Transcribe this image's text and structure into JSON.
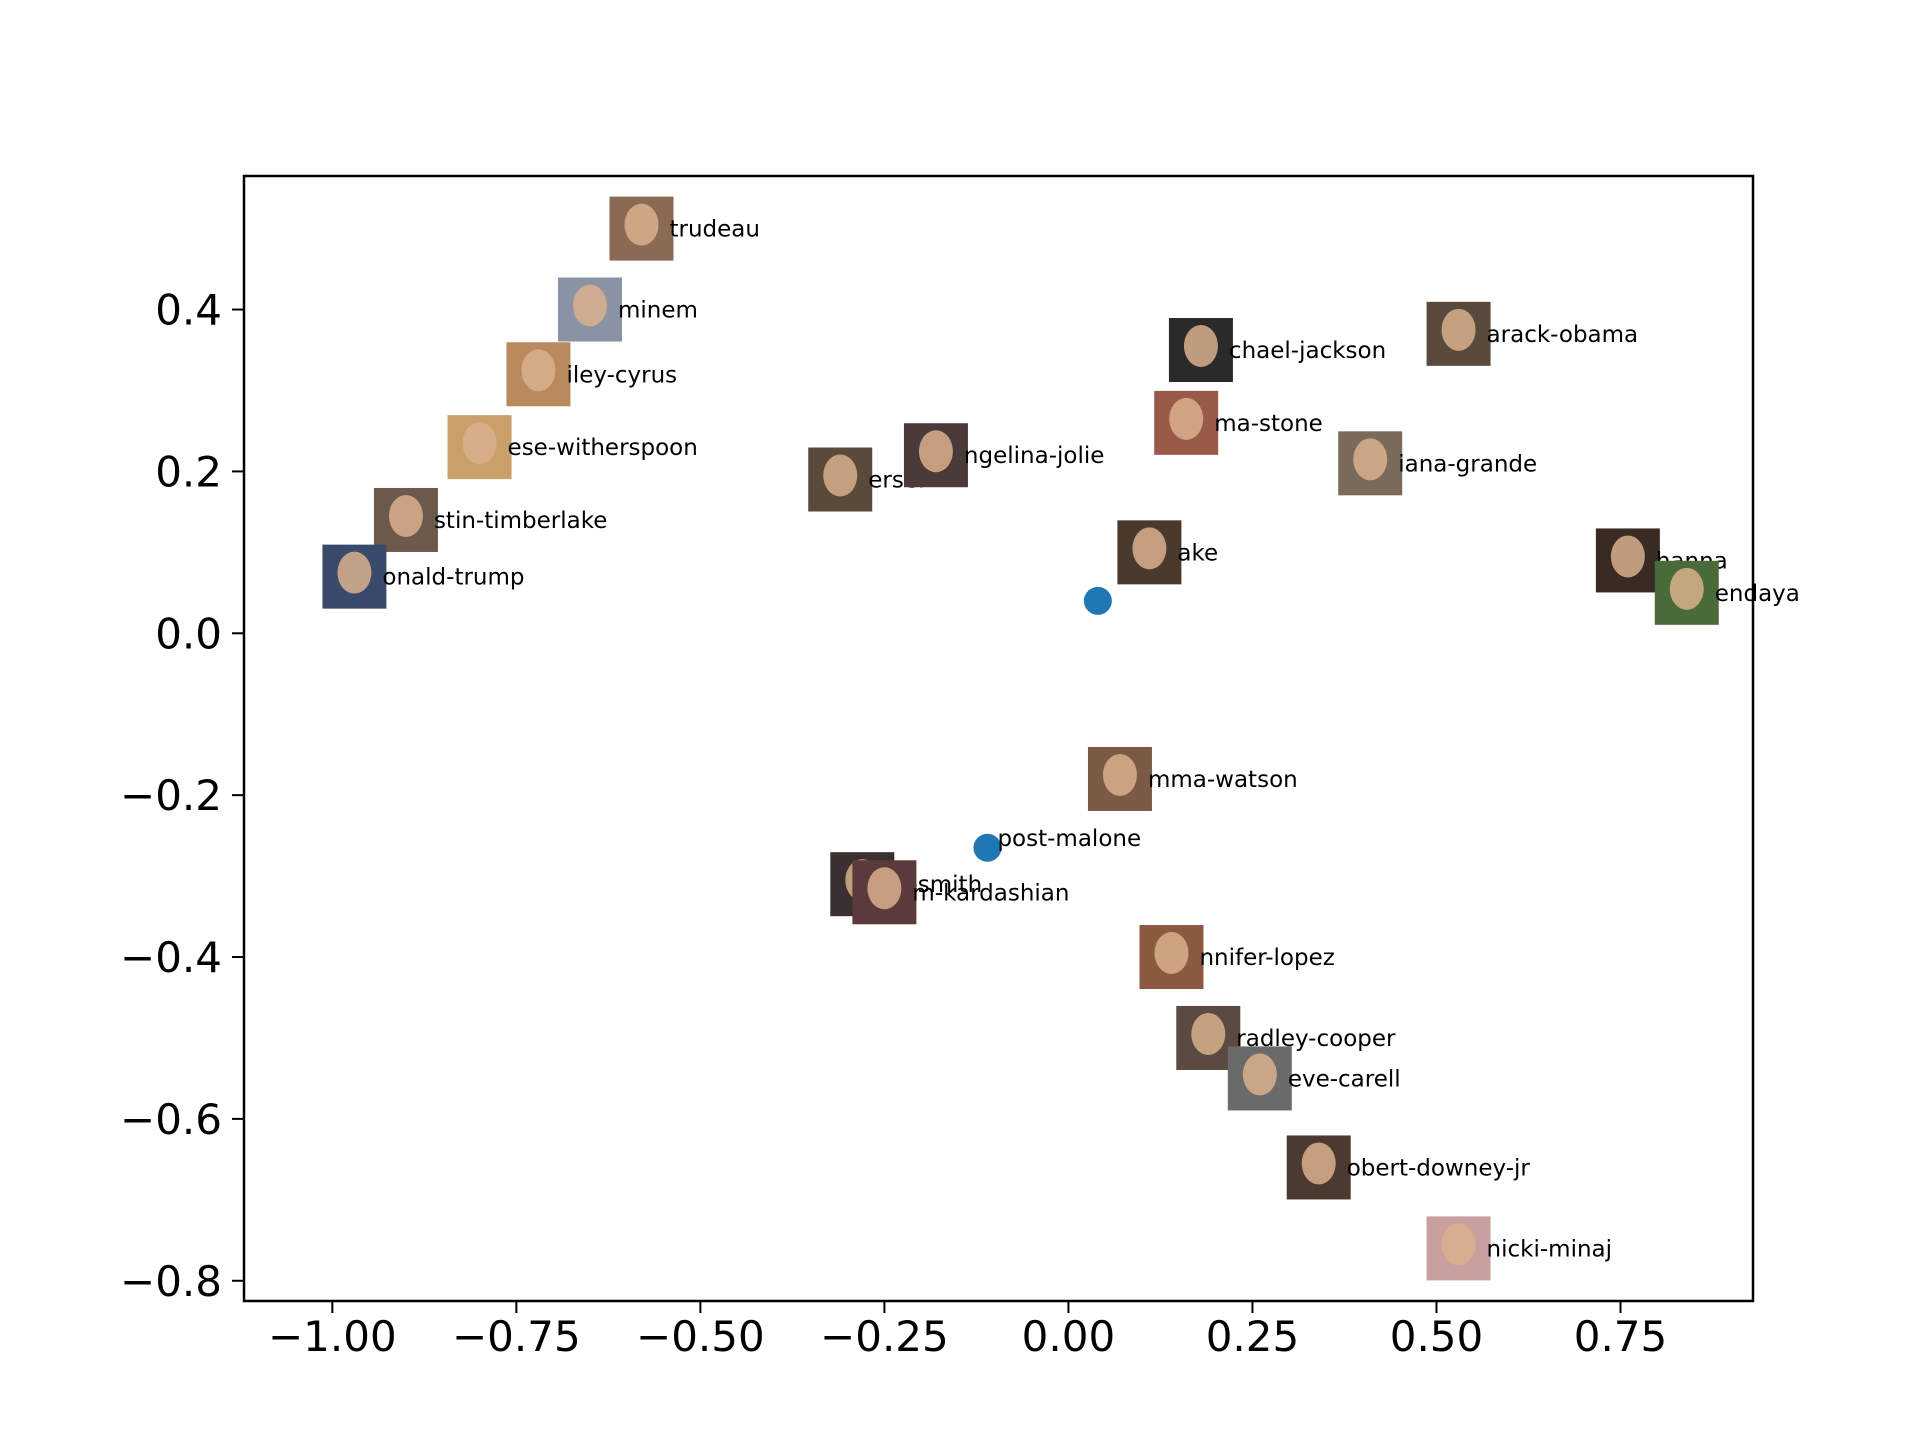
{
  "chart_data": {
    "type": "scatter",
    "title": "",
    "xlabel": "",
    "ylabel": "",
    "xlim": [
      -1.12,
      0.93
    ],
    "ylim": [
      -0.825,
      0.565
    ],
    "xticks": [
      -1.0,
      -0.75,
      -0.5,
      -0.25,
      0.0,
      0.25,
      0.5,
      0.75
    ],
    "xtick_labels": [
      "−1.00",
      "−0.75",
      "−0.50",
      "−0.25",
      "0.00",
      "0.25",
      "0.50",
      "0.75"
    ],
    "yticks": [
      0.4,
      0.2,
      0.0,
      -0.2,
      -0.4,
      -0.6,
      -0.8
    ],
    "ytick_labels": [
      "0.4",
      "0.2",
      "0.0",
      "−0.2",
      "−0.4",
      "−0.6",
      "−0.8"
    ],
    "grid": false,
    "marker_color": "#1f77b4",
    "points": [
      {
        "name": "justin-trudeau",
        "label": "trudeau",
        "x": -0.58,
        "y": 0.5,
        "thumb": "#8a6a55"
      },
      {
        "name": "eminem",
        "label": "minem",
        "x": -0.65,
        "y": 0.4,
        "thumb": "#8a93a3"
      },
      {
        "name": "miley-cyrus",
        "label": "iley-cyrus",
        "x": -0.72,
        "y": 0.32,
        "thumb": "#b88a5e"
      },
      {
        "name": "reese-witherspoon",
        "label": "ese-witherspoon",
        "x": -0.8,
        "y": 0.23,
        "thumb": "#c9a06a"
      },
      {
        "name": "justin-timberlake",
        "label": "stin-timberlake",
        "x": -0.9,
        "y": 0.14,
        "thumb": "#6b5a4c"
      },
      {
        "name": "donald-trump",
        "label": "onald-trump",
        "x": -0.97,
        "y": 0.07,
        "thumb": "#3a4a6a"
      },
      {
        "name": "cersei",
        "label": "ersei",
        "x": -0.31,
        "y": 0.19,
        "thumb": "#5a4a3a"
      },
      {
        "name": "angelina-jolie",
        "label": "ngelina-jolie",
        "x": -0.18,
        "y": 0.22,
        "thumb": "#4a3a3a"
      },
      {
        "name": "michael-jackson",
        "label": "chael-jackson",
        "x": 0.18,
        "y": 0.35,
        "thumb": "#2a2a2a"
      },
      {
        "name": "emma-stone",
        "label": "ma-stone",
        "x": 0.16,
        "y": 0.26,
        "thumb": "#9a5a4a"
      },
      {
        "name": "barack-obama",
        "label": "arack-obama",
        "x": 0.53,
        "y": 0.37,
        "thumb": "#5a4a3e"
      },
      {
        "name": "ariana-grande",
        "label": "iana-grande",
        "x": 0.41,
        "y": 0.21,
        "thumb": "#7a6a5a"
      },
      {
        "name": "drake",
        "label": "ake",
        "x": 0.11,
        "y": 0.1,
        "thumb": "#4a3a2e"
      },
      {
        "name": "rihanna",
        "label": "hanna",
        "x": 0.76,
        "y": 0.09,
        "thumb": "#3a2a24"
      },
      {
        "name": "zendaya",
        "label": "endaya",
        "x": 0.84,
        "y": 0.05,
        "thumb": "#4a6a3a"
      },
      {
        "name": "emma-watson",
        "label": "mma-watson",
        "x": 0.07,
        "y": -0.18,
        "thumb": "#7a5a45"
      },
      {
        "name": "will-smith",
        "label": "ill-smith",
        "x": -0.28,
        "y": -0.31,
        "thumb": "#3a3030"
      },
      {
        "name": "kim-kardashian",
        "label": "m-kardashian",
        "x": -0.25,
        "y": -0.32,
        "thumb": "#5a3a3a"
      },
      {
        "name": "jennifer-lopez",
        "label": "nnifer-lopez",
        "x": 0.14,
        "y": -0.4,
        "thumb": "#8a5a40"
      },
      {
        "name": "bradley-cooper",
        "label": "radley-cooper",
        "x": 0.19,
        "y": -0.5,
        "thumb": "#5a4a40"
      },
      {
        "name": "steve-carell",
        "label": "eve-carell",
        "x": 0.26,
        "y": -0.55,
        "thumb": "#6a6a6a"
      },
      {
        "name": "robert-downey-jr",
        "label": "obert-downey-jr",
        "x": 0.34,
        "y": -0.66,
        "thumb": "#4a3a30"
      },
      {
        "name": "nicki-minaj",
        "label": "nicki-minaj",
        "x": 0.53,
        "y": -0.76,
        "thumb": "#c9a0a0"
      }
    ],
    "blue_points": [
      {
        "label": "",
        "x": 0.04,
        "y": 0.04
      },
      {
        "label": "post-malone",
        "x": -0.11,
        "y": -0.265
      }
    ]
  }
}
